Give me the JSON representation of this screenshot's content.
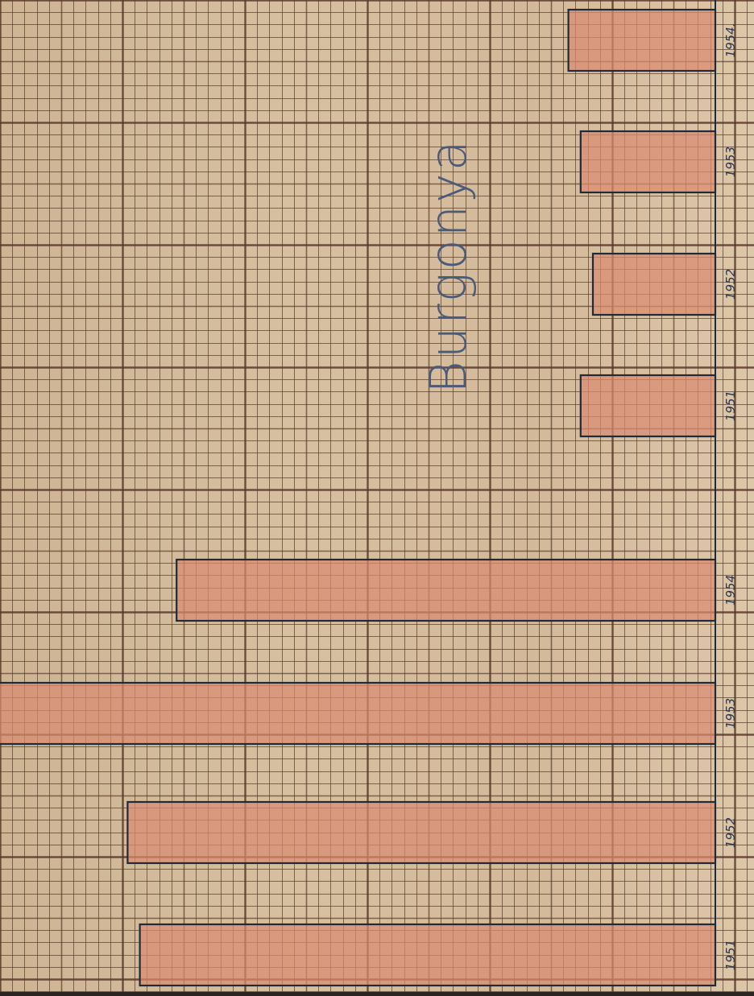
{
  "chart_data": {
    "type": "bar",
    "orientation": "horizontal, page rotated 90° (bars grow leftward from the baseline at the right)",
    "title": "Burgonya",
    "grid": true,
    "upper_group": {
      "categories": [
        "1954.",
        "1953",
        "1952",
        "1951"
      ],
      "values": [
        12,
        11,
        10,
        11
      ]
    },
    "lower_group": {
      "categories": [
        "1954",
        "1953",
        "1952",
        "1951"
      ],
      "values": [
        44,
        59,
        48,
        47
      ]
    },
    "units": "graph-paper small squares",
    "colors": {
      "bar_fill": "#d98a6f",
      "bar_outline": "#1f2a3a",
      "grid": "#5a3a2a"
    }
  }
}
